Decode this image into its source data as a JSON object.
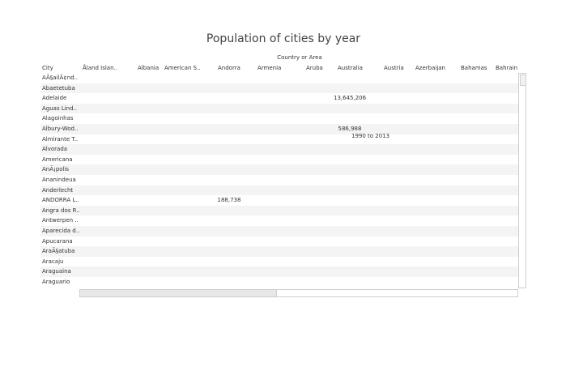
{
  "chart_data": {
    "type": "table",
    "title": "Population of cities by year",
    "column_group_label": "Country or Area",
    "row_header": "City",
    "columns": [
      "Åland Islan..",
      "Albania",
      "American S..",
      "Andorra",
      "Armenia",
      "Aruba",
      "Australia",
      "Austria",
      "Azerbaijan",
      "Bahamas",
      "Bahrain"
    ],
    "rows": [
      "AÃ§ailÃ¢nd..",
      "Abaetetuba",
      "Adelaide",
      "Aguas Lind..",
      "Alagoinhas",
      "Albury-Wod..",
      "Almirante T..",
      "Alvorada",
      "Americana",
      "AnÃ¡polis",
      "Ananindeua",
      "Anderlecht",
      "ANDORRA L..",
      "Angra dos R..",
      "Antwerpen ..",
      "Aparecida d..",
      "Apucarana",
      "AraÃ§atuba",
      "Aracaju",
      "Araguaina",
      "Araguario"
    ],
    "cells": [
      {
        "row": "Adelaide",
        "column": "Australia",
        "value": "13,645,206"
      },
      {
        "row": "Albury-Wod..",
        "column": "Australia",
        "value": "586,988"
      },
      {
        "row": "ANDORRA L..",
        "column": "Andorra",
        "value": "188,738"
      }
    ],
    "tooltip": {
      "row": "Almirante T..",
      "text": "1990 to 2013"
    }
  }
}
